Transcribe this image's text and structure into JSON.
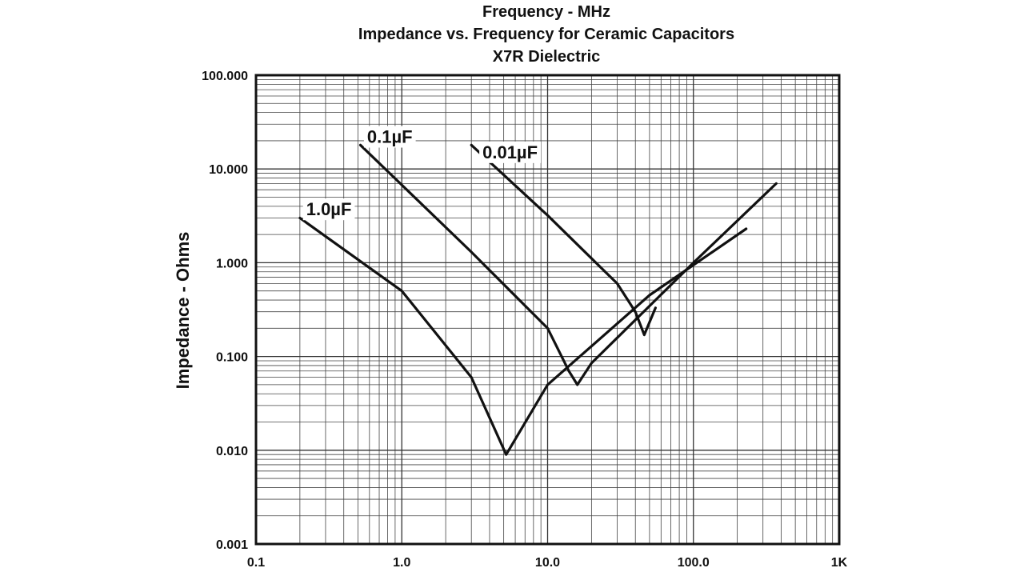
{
  "chart_data": {
    "type": "line",
    "xscale": "log",
    "yscale": "log",
    "grid": true,
    "xlabel": "Frequency - MHz",
    "ylabel": "Impedance - Ohms",
    "title": "Impedance vs. Frequency for Ceramic Capacitors",
    "subtitle": "X7R Dielectric",
    "xlim": [
      0.1,
      1000
    ],
    "ylim": [
      0.001,
      100
    ],
    "x_ticks": [
      {
        "value": 0.1,
        "label": "0.1"
      },
      {
        "value": 1,
        "label": "1.0"
      },
      {
        "value": 10,
        "label": "10.0"
      },
      {
        "value": 100,
        "label": "100.0"
      },
      {
        "value": 1000,
        "label": "1K"
      }
    ],
    "y_ticks": [
      {
        "value": 0.001,
        "label": "0.001"
      },
      {
        "value": 0.01,
        "label": "0.010"
      },
      {
        "value": 0.1,
        "label": "0.100"
      },
      {
        "value": 1,
        "label": "1.000"
      },
      {
        "value": 10,
        "label": "10.000"
      },
      {
        "value": 100,
        "label": "100.000"
      }
    ],
    "series": [
      {
        "name": "1.0µF",
        "label_at": {
          "x": 0.21,
          "y": 3.2
        },
        "points": [
          {
            "x": 0.2,
            "y": 3.0
          },
          {
            "x": 1.0,
            "y": 0.5
          },
          {
            "x": 3.0,
            "y": 0.06
          },
          {
            "x": 5.2,
            "y": 0.009
          },
          {
            "x": 10,
            "y": 0.05
          },
          {
            "x": 50,
            "y": 0.45
          },
          {
            "x": 230,
            "y": 2.3
          }
        ]
      },
      {
        "name": "0.1µF",
        "label_at": {
          "x": 0.55,
          "y": 19
        },
        "points": [
          {
            "x": 0.52,
            "y": 18
          },
          {
            "x": 3.0,
            "y": 1.3
          },
          {
            "x": 10,
            "y": 0.2
          },
          {
            "x": 14,
            "y": 0.07
          },
          {
            "x": 16,
            "y": 0.05
          },
          {
            "x": 20,
            "y": 0.085
          },
          {
            "x": 100,
            "y": 1.0
          },
          {
            "x": 370,
            "y": 7.0
          }
        ]
      },
      {
        "name": "0.01µF",
        "label_at": {
          "x": 3.4,
          "y": 13
        },
        "points": [
          {
            "x": 3.0,
            "y": 18
          },
          {
            "x": 10,
            "y": 3.2
          },
          {
            "x": 30,
            "y": 0.6
          },
          {
            "x": 40,
            "y": 0.3
          },
          {
            "x": 46,
            "y": 0.17
          },
          {
            "x": 55,
            "y": 0.33
          }
        ]
      }
    ]
  }
}
